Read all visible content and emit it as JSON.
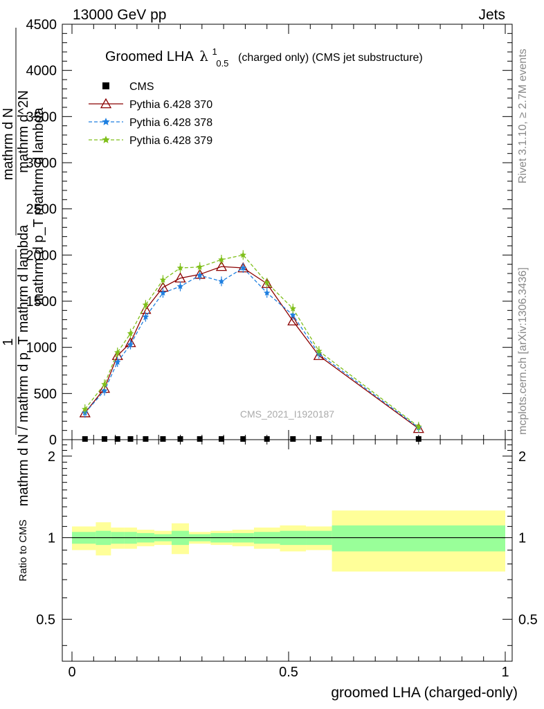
{
  "header": {
    "left": "13000 GeV pp",
    "right": "Jets"
  },
  "main_title": {
    "prefix": "Groomed LHA",
    "lambda": "λ",
    "sup": "1",
    "sub": "0.5",
    "suffix": "(charged only) (CMS jet substructure)"
  },
  "side_labels": {
    "rivet": "Rivet 3.1.10, ≥ 2.7M events",
    "mcplots": "mcplots.cern.ch [arXiv:1306.3436]"
  },
  "watermark": "CMS_2021_I1920187",
  "y_axis_label": {
    "one": "1",
    "num_a": "mathrm d N",
    "den_a": "mathrm d N / mathrm d p_T mathrm d lambda",
    "num_b": "mathrm d^2N",
    "den_b": "mathrm d p_T mathrm d lambda"
  },
  "ratio_ylabel": "Ratio to CMS",
  "x_axis_label": "groomed LHA (charged-only)",
  "legend": [
    {
      "name": "CMS",
      "color": "#000000",
      "marker": "square",
      "dash": ""
    },
    {
      "name": "Pythia 6.428 370",
      "color": "#8b0000",
      "marker": "triangle",
      "dash": ""
    },
    {
      "name": "Pythia 6.428 378",
      "color": "#1e7fe0",
      "marker": "star",
      "dash": "5,3"
    },
    {
      "name": "Pythia 6.428 379",
      "color": "#7fbf1a",
      "marker": "star",
      "dash": "5,3"
    }
  ],
  "chart_data": {
    "type": "line",
    "xlim": [
      0,
      1
    ],
    "ylim_main": [
      0,
      4500
    ],
    "ylim_ratio": [
      0.35,
      2.3
    ],
    "x_ticks": [
      0,
      0.5,
      1
    ],
    "x_tick_labels": [
      "0",
      "0.5",
      "1"
    ],
    "y_ticks_main": [
      0,
      500,
      1000,
      1500,
      2000,
      2500,
      3000,
      3500,
      4000,
      4500
    ],
    "y_tick_labels_main": [
      "0",
      "500",
      "1000",
      "1500",
      "2000",
      "2500",
      "3000",
      "3500",
      "4000",
      "4500"
    ],
    "ratio_ticks": [
      0.5,
      1,
      2
    ],
    "ratio_tick_labels": [
      "0.5",
      "1",
      "2"
    ],
    "x": [
      0.03,
      0.075,
      0.105,
      0.135,
      0.17,
      0.21,
      0.25,
      0.295,
      0.345,
      0.395,
      0.45,
      0.51,
      0.57,
      0.8
    ],
    "series": [
      {
        "name": "CMS",
        "values": [
          0,
          0,
          0,
          0,
          0,
          0,
          0,
          0,
          0,
          0,
          0,
          0,
          0,
          0
        ]
      },
      {
        "name": "Pythia 6.428 370",
        "values": [
          290,
          555,
          910,
          1050,
          1410,
          1650,
          1750,
          1790,
          1875,
          1860,
          1690,
          1285,
          910,
          120
        ]
      },
      {
        "name": "Pythia 6.428 378",
        "values": [
          290,
          530,
          840,
          1030,
          1330,
          1590,
          1660,
          1780,
          1715,
          1860,
          1590,
          1350,
          930,
          130
        ]
      },
      {
        "name": "Pythia 6.428 379",
        "values": [
          330,
          600,
          945,
          1150,
          1460,
          1730,
          1860,
          1870,
          1950,
          2000,
          1700,
          1420,
          960,
          140
        ]
      }
    ],
    "ratio_bands": {
      "edges": [
        0,
        0.055,
        0.09,
        0.12,
        0.15,
        0.19,
        0.23,
        0.27,
        0.32,
        0.37,
        0.42,
        0.48,
        0.54,
        0.6,
        1.0
      ],
      "inner": [
        [
          0.95,
          1.05
        ],
        [
          0.94,
          1.06
        ],
        [
          0.95,
          1.05
        ],
        [
          0.95,
          1.05
        ],
        [
          0.96,
          1.04
        ],
        [
          0.97,
          1.03
        ],
        [
          0.94,
          1.06
        ],
        [
          0.97,
          1.03
        ],
        [
          0.96,
          1.04
        ],
        [
          0.96,
          1.04
        ],
        [
          0.95,
          1.05
        ],
        [
          0.94,
          1.06
        ],
        [
          0.94,
          1.06
        ],
        [
          0.89,
          1.11
        ]
      ],
      "outer": [
        [
          0.9,
          1.1
        ],
        [
          0.86,
          1.14
        ],
        [
          0.91,
          1.09
        ],
        [
          0.91,
          1.09
        ],
        [
          0.93,
          1.07
        ],
        [
          0.94,
          1.06
        ],
        [
          0.87,
          1.13
        ],
        [
          0.95,
          1.05
        ],
        [
          0.94,
          1.06
        ],
        [
          0.93,
          1.07
        ],
        [
          0.91,
          1.09
        ],
        [
          0.89,
          1.11
        ],
        [
          0.9,
          1.1
        ],
        [
          0.75,
          1.26
        ]
      ],
      "inner_color": "#99ff99",
      "outer_color": "#ffff99"
    }
  }
}
